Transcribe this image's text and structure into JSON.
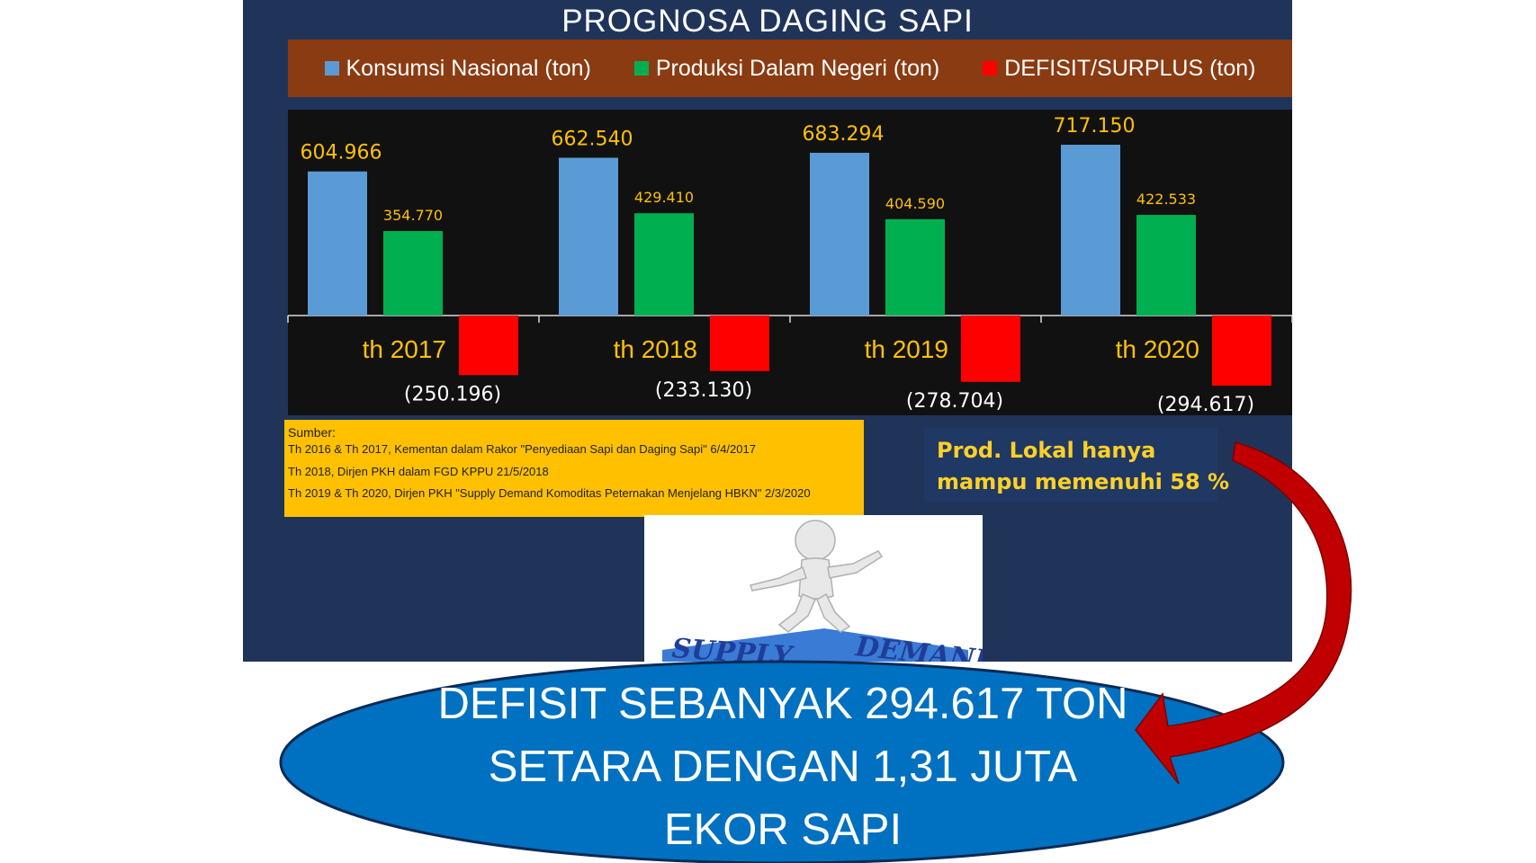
{
  "slide": {
    "title": "PROGNOSA DAGING SAPI",
    "background_color": "#20345a",
    "legend_bar_color": "#8b3b12",
    "plot_area_color": "#111111"
  },
  "legend": [
    {
      "label": "Konsumsi Nasional (ton)",
      "color": "#5b9bd5"
    },
    {
      "label": "Produksi Dalam Negeri (ton)",
      "color": "#00b050"
    },
    {
      "label": "DEFISIT/SURPLUS (ton)",
      "color": "#ff0000"
    }
  ],
  "chart_data": {
    "type": "bar",
    "title": "PROGNOSA DAGING SAPI",
    "categories": [
      "th 2017",
      "th 2018",
      "th 2019",
      "th 2020"
    ],
    "series": [
      {
        "name": "Konsumsi Nasional (ton)",
        "color": "#5b9bd5",
        "values": [
          604966,
          662540,
          683294,
          717150
        ],
        "labels": [
          "604.966",
          "662.540",
          "683.294",
          "717.150"
        ]
      },
      {
        "name": "Produksi Dalam Negeri (ton)",
        "color": "#00b050",
        "values": [
          354770,
          429410,
          404590,
          422533
        ],
        "labels": [
          "354.770",
          "429.410",
          "404.590",
          "422.533"
        ]
      },
      {
        "name": "DEFISIT/SURPLUS (ton)",
        "color": "#ff0000",
        "values": [
          -250196,
          -233130,
          -278704,
          -294617
        ],
        "labels": [
          "(250.196)",
          "(233.130)",
          "(278.704)",
          "(294.617)"
        ]
      }
    ],
    "label_color": "#ffc000",
    "grid": false,
    "legend_position": "top"
  },
  "source": {
    "title": "Sumber:",
    "lines": [
      "Th 2016 & Th 2017, Kementan dalam Rakor \"Penyediaan Sapi dan Daging Sapi\" 6/4/2017",
      "Th 2018, Dirjen PKH dalam FGD KPPU 21/5/2018",
      "Th 2019 & Th 2020, Dirjen PKH \"Supply Demand Komoditas Peternakan Menjelang HBKN\" 2/3/2020"
    ],
    "color": "#ffc000"
  },
  "note": {
    "line1": "Prod. Lokal hanya",
    "line2": "mampu memenuhi 58 %"
  },
  "illustration": {
    "supply_text": "SUPPLY",
    "demand_text": "DEMAND"
  },
  "deficit": {
    "line1": "DEFISIT SEBANYAK 294.617 TON",
    "line2": "SETARA DENGAN 1,31 JUTA",
    "line3": "EKOR SAPI",
    "ellipse_color": "#0070c0"
  },
  "arrow": {
    "color": "#c00000"
  }
}
